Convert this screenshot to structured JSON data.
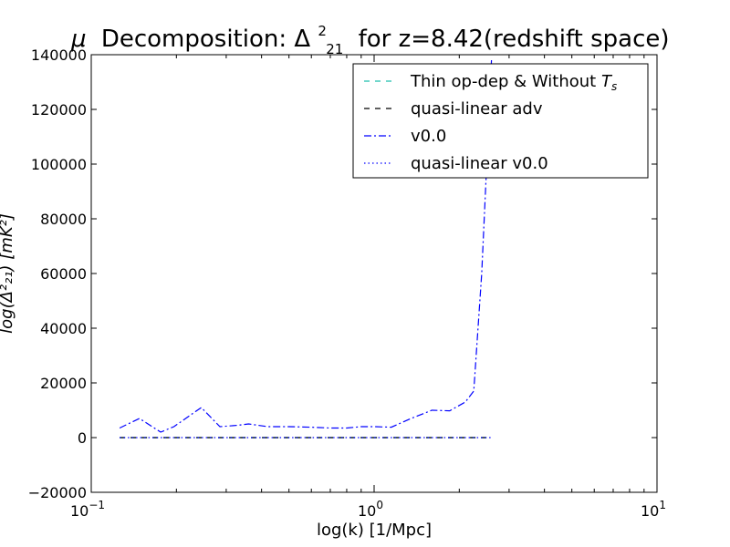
{
  "chart_data": {
    "type": "line",
    "title_prefix": "μ",
    "title_main": "Decomposition: Δ",
    "title_sup": "2",
    "title_sub": "21",
    "title_suffix": "for z=8.42(redshift space)",
    "xlabel": "log(k) [1/Mpc]",
    "ylabel": "log(Δ²₂₁) [mK²]",
    "xscale": "log",
    "xlim": [
      0.1,
      10
    ],
    "ylim": [
      -20000,
      140000
    ],
    "x_ticks": [
      {
        "base": "10",
        "exp": "-1",
        "value": 0.1
      },
      {
        "base": "10",
        "exp": "0",
        "value": 1
      },
      {
        "base": "10",
        "exp": "1",
        "value": 10
      }
    ],
    "y_ticks": [
      "-20000",
      "0",
      "20000",
      "40000",
      "60000",
      "80000",
      "100000",
      "120000",
      "140000"
    ],
    "legend_position": "upper-right",
    "colors": {
      "thin": "#1fbfae",
      "quasi_adv": "#000000",
      "v00": "#0000ff",
      "quasi_v00": "#0000ff"
    },
    "series": [
      {
        "name": "Thin op-dep & Without T_s",
        "legend_main": "Thin op-dep & Without ",
        "legend_italic": "T",
        "legend_sub": "s",
        "style": "dashed",
        "color": "#1fbfae",
        "x": [
          0.126,
          0.15,
          0.175,
          0.2,
          0.25,
          0.3,
          0.35,
          0.4,
          0.5,
          0.6,
          0.7,
          0.8,
          0.9,
          1.0,
          1.2,
          1.5,
          1.8,
          2.0,
          2.2,
          2.4,
          2.6
        ],
        "values": [
          0,
          0,
          0,
          0,
          0,
          0,
          0,
          0,
          0,
          0,
          0,
          0,
          0,
          0,
          0,
          0,
          0,
          0,
          0,
          0,
          0
        ]
      },
      {
        "name": "quasi-linear adv",
        "style": "dashed",
        "color": "#000000",
        "x": [
          0.126,
          0.15,
          0.175,
          0.2,
          0.25,
          0.3,
          0.35,
          0.4,
          0.5,
          0.6,
          0.7,
          0.8,
          0.9,
          1.0,
          1.2,
          1.5,
          1.8,
          2.0,
          2.2,
          2.4,
          2.6
        ],
        "values": [
          0,
          0,
          0,
          0,
          0,
          0,
          0,
          0,
          0,
          0,
          0,
          0,
          0,
          0,
          0,
          0,
          0,
          0,
          0,
          0,
          0
        ]
      },
      {
        "name": "v0.0",
        "style": "dashdot",
        "color": "#0000ff",
        "x": [
          0.126,
          0.148,
          0.176,
          0.196,
          0.245,
          0.285,
          0.33,
          0.36,
          0.42,
          0.5,
          0.6,
          0.7,
          0.8,
          0.9,
          1.0,
          1.15,
          1.35,
          1.6,
          1.85,
          2.1,
          2.25,
          2.4,
          2.5,
          2.6
        ],
        "values": [
          3500,
          7000,
          2000,
          4000,
          11000,
          4000,
          4500,
          5000,
          4000,
          4000,
          3800,
          3500,
          3500,
          4000,
          4000,
          3800,
          7000,
          10000,
          9800,
          13000,
          17000,
          60000,
          100000,
          138000
        ]
      },
      {
        "name": "quasi-linear v0.0",
        "style": "dotted",
        "color": "#0000ff",
        "x": [
          0.126,
          0.15,
          0.175,
          0.2,
          0.25,
          0.3,
          0.35,
          0.4,
          0.5,
          0.6,
          0.7,
          0.8,
          0.9,
          1.0,
          1.2,
          1.5,
          1.8,
          2.0,
          2.2,
          2.4,
          2.6
        ],
        "values": [
          0,
          0,
          0,
          0,
          0,
          0,
          0,
          0,
          0,
          0,
          0,
          0,
          0,
          0,
          0,
          0,
          0,
          0,
          0,
          0,
          0
        ]
      }
    ]
  }
}
